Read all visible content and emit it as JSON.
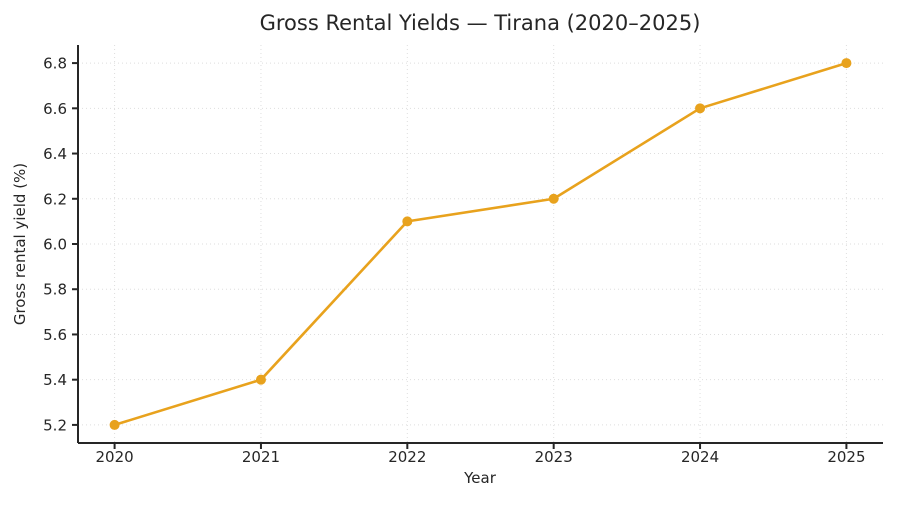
{
  "chart_data": {
    "type": "line",
    "title": "Gross Rental Yields — Tirana (2020–2025)",
    "xlabel": "Year",
    "ylabel": "Gross rental yield (%)",
    "series": [
      {
        "name": "Gross rental yield",
        "x": [
          2020,
          2021,
          2022,
          2023,
          2024,
          2025
        ],
        "values": [
          5.2,
          5.4,
          6.1,
          6.2,
          6.6,
          6.8
        ]
      }
    ],
    "xticks": [
      2020,
      2021,
      2022,
      2023,
      2024,
      2025
    ],
    "yticks": [
      5.2,
      5.4,
      5.6,
      5.8,
      6.0,
      6.2,
      6.4,
      6.6,
      6.8
    ],
    "xlim": [
      2019.75,
      2025.25
    ],
    "ylim": [
      5.12,
      6.88
    ],
    "grid": true,
    "legend_position": "none",
    "marker": "circle",
    "colors": {
      "line": "#E8A21D",
      "marker": "#E8A21D",
      "grid": "#DEDEDE",
      "spine": "#262626",
      "text": "#262626",
      "background": "#FFFFFF"
    }
  }
}
